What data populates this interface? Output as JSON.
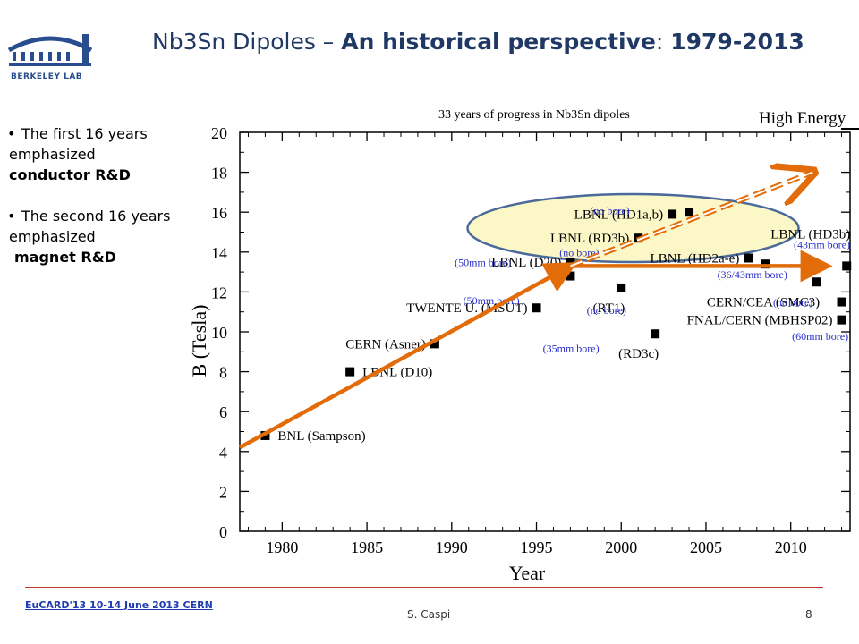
{
  "slide": {
    "title_prefix": "Nb3Sn Dipoles –",
    "title_bold": "An historical perspective",
    "title_sep": ":",
    "title_years": "1979-2013",
    "logo_text": "BERKELEY LAB",
    "bullets": [
      {
        "line1": "The first 16 years",
        "line2": "emphasized",
        "line3": "conductor R&D"
      },
      {
        "line1": "The second 16 years",
        "line2": "emphasized",
        "line3": "magnet R&D"
      }
    ],
    "footer_left": "EuCARD'13 10-14 June 2013 CERN",
    "footer_author": "S. Caspi",
    "page_number": "8"
  },
  "colors": {
    "title": "#1f3864",
    "arrow": "#e36c0a",
    "bore_label": "#2b30c8",
    "ellipse_fill": "#fbf7c6",
    "ellipse_stroke": "#4a6a9a",
    "rule": "#c0392b"
  },
  "chart_data": {
    "type": "scatter",
    "title": "33 years of progress in Nb3Sn dipoles",
    "corner_label": "High Energy",
    "xlabel": "Year",
    "ylabel": "B (Tesla)",
    "xlim": [
      1977.5,
      2013.5
    ],
    "ylim": [
      0,
      20
    ],
    "xticks": [
      1980,
      1985,
      1990,
      1995,
      2000,
      2005,
      2010
    ],
    "yticks": [
      0,
      2,
      4,
      6,
      8,
      10,
      12,
      14,
      16,
      18,
      20
    ],
    "points": [
      {
        "x": 1979,
        "y": 4.8,
        "label": "BNL (Sampson)"
      },
      {
        "x": 1984,
        "y": 8.0,
        "label": "LBNL (D10)"
      },
      {
        "x": 1989,
        "y": 9.4,
        "label": "CERN (Asner)"
      },
      {
        "x": 1995,
        "y": 11.2,
        "label": "TWENTE U. (MSUT)"
      },
      {
        "x": 1997,
        "y": 13.5,
        "label": "LBNL (D20)"
      },
      {
        "x": 1997,
        "y": 12.8,
        "label": ""
      },
      {
        "x": 2000,
        "y": 12.2,
        "label": "(RT1)"
      },
      {
        "x": 2001,
        "y": 14.7,
        "label": "LBNL (RD3b)"
      },
      {
        "x": 2002,
        "y": 9.9,
        "label": "(RD3c)"
      },
      {
        "x": 2003,
        "y": 15.9,
        "label": "LBNL (HD1a,b)"
      },
      {
        "x": 2004,
        "y": 16.0,
        "label": ""
      },
      {
        "x": 2007.5,
        "y": 13.7,
        "label": "LBNL (HD2a-e)"
      },
      {
        "x": 2008.5,
        "y": 13.4,
        "label": ""
      },
      {
        "x": 2011.5,
        "y": 12.5,
        "label": "CERN/CEA (SMC3)"
      },
      {
        "x": 2013,
        "y": 11.5,
        "label": ""
      },
      {
        "x": 2013,
        "y": 10.6,
        "label": "FNAL/CERN (MBHSP02)"
      },
      {
        "x": 2013.3,
        "y": 13.3,
        "label": "LBNL (HD3b)"
      }
    ],
    "bore_labels": [
      {
        "text": "(50mm bore)",
        "x": 1994.0,
        "y": 11.4
      },
      {
        "text": "(50mm bore)",
        "x": 1993.5,
        "y": 13.3
      },
      {
        "text": "(no bore)",
        "x": 2000.5,
        "y": 15.9
      },
      {
        "text": "(no bore)",
        "x": 1998.7,
        "y": 13.8
      },
      {
        "text": "(no bore)",
        "x": 2000.3,
        "y": 10.9
      },
      {
        "text": "(35mm bore)",
        "x": 1998.7,
        "y": 9.0
      },
      {
        "text": "(36/43mm bore)",
        "x": 2009.8,
        "y": 12.7
      },
      {
        "text": "(no bore)",
        "x": 2011.3,
        "y": 11.3
      },
      {
        "text": "(43mm bore)",
        "x": 2013.5,
        "y": 14.2
      },
      {
        "text": "(60mm bore)",
        "x": 2013.4,
        "y": 9.6
      }
    ],
    "point_label_offsets": {
      "BNL (Sampson)": "right",
      "LBNL (D10)": "right",
      "CERN (Asner)": "left",
      "TWENTE U. (MSUT)": "left",
      "LBNL (D20)": "left",
      "(RT1)": "below-left",
      "LBNL (RD3b)": "left",
      "(RD3c)": "below-left",
      "LBNL (HD1a,b)": "left",
      "LBNL (HD2a-e)": "left",
      "CERN/CEA (SMC3)": "below-left",
      "FNAL/CERN (MBHSP02)": "left",
      "LBNL (HD3b)": "above-left"
    },
    "trend_arrows": [
      {
        "style": "solid",
        "from": [
          1977.5,
          4.2
        ],
        "to": [
          1997,
          13.3
        ]
      },
      {
        "style": "solid",
        "from": [
          1997,
          13.3
        ],
        "to": [
          2012,
          13.3
        ]
      },
      {
        "style": "dashed",
        "from": [
          1997,
          13.3
        ],
        "to": [
          2011.3,
          18.0
        ]
      }
    ]
  }
}
